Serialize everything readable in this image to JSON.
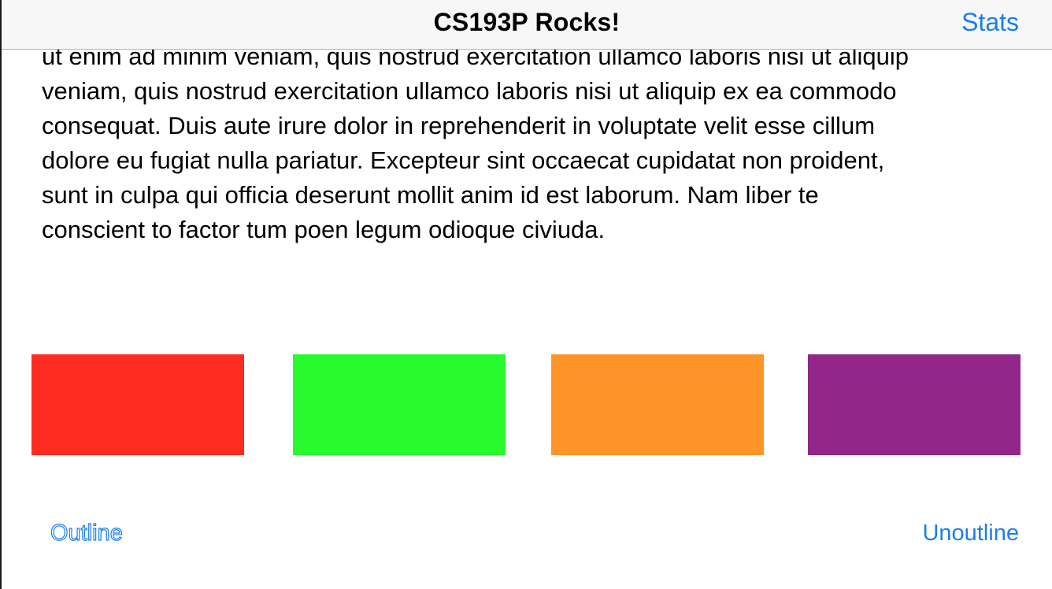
{
  "navbar": {
    "title": "CS193P Rocks!",
    "stats_label": "Stats"
  },
  "text_view": {
    "lines": [
      "ut enim ad minim veniam, quis nostrud exercitation ullamco laboris nisi ut aliquip",
      "veniam, quis nostrud exercitation ullamco laboris nisi ut aliquip ex ea commodo",
      "consequat. Duis aute irure dolor in reprehenderit in voluptate velit esse cillum",
      "dolore eu fugiat nulla pariatur. Excepteur sint occaecat cupidatat non proident,",
      "sunt in culpa qui officia deserunt mollit anim id est laborum. Nam liber te",
      "conscient to factor tum poen legum odioque civiuda."
    ]
  },
  "color_swatches": [
    {
      "name": "red",
      "color": "#fd2b20"
    },
    {
      "name": "green",
      "color": "#28fa2e"
    },
    {
      "name": "orange",
      "color": "#fd9428"
    },
    {
      "name": "purple",
      "color": "#922689"
    }
  ],
  "buttons": {
    "outline_label": "Outline",
    "unoutline_label": "Unoutline"
  },
  "colors": {
    "accent": "#1a7fe8",
    "navbar_bg": "#f7f7f7"
  }
}
